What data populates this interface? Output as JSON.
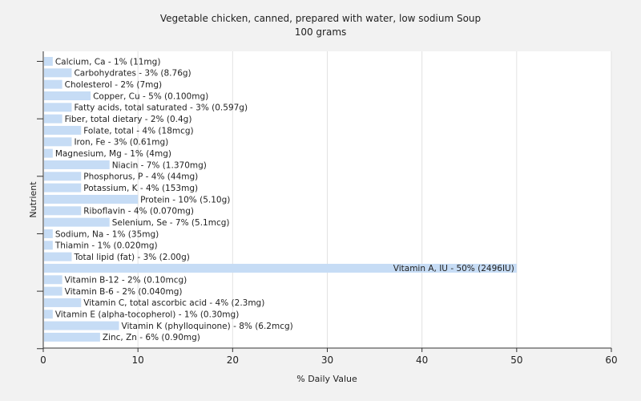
{
  "chart_data": {
    "type": "bar",
    "orientation": "horizontal",
    "title": "Vegetable chicken, canned, prepared with water, low sodium Soup",
    "subtitle": "100 grams",
    "xlabel": "% Daily Value",
    "ylabel": "Nutrient",
    "xlim": [
      0,
      60
    ],
    "xticks": [
      0,
      10,
      20,
      30,
      40,
      50,
      60
    ],
    "grid": true,
    "bar_color": "#c6dcf5",
    "categories": [
      "Calcium, Ca",
      "Carbohydrates",
      "Cholesterol",
      "Copper, Cu",
      "Fatty acids, total saturated",
      "Fiber, total dietary",
      "Folate, total",
      "Iron, Fe",
      "Magnesium, Mg",
      "Niacin",
      "Phosphorus, P",
      "Potassium, K",
      "Protein",
      "Riboflavin",
      "Selenium, Se",
      "Sodium, Na",
      "Thiamin",
      "Total lipid (fat)",
      "Vitamin A, IU",
      "Vitamin B-12",
      "Vitamin B-6",
      "Vitamin C, total ascorbic acid",
      "Vitamin E (alpha-tocopherol)",
      "Vitamin K (phylloquinone)",
      "Zinc, Zn"
    ],
    "values": [
      1,
      3,
      2,
      5,
      3,
      2,
      4,
      3,
      1,
      7,
      4,
      4,
      10,
      4,
      7,
      1,
      1,
      3,
      50,
      2,
      2,
      4,
      1,
      8,
      6
    ],
    "labels": [
      "Calcium, Ca - 1% (11mg)",
      "Carbohydrates - 3% (8.76g)",
      "Cholesterol - 2% (7mg)",
      "Copper, Cu - 5% (0.100mg)",
      "Fatty acids, total saturated - 3% (0.597g)",
      "Fiber, total dietary - 2% (0.4g)",
      "Folate, total - 4% (18mcg)",
      "Iron, Fe - 3% (0.61mg)",
      "Magnesium, Mg - 1% (4mg)",
      "Niacin - 7% (1.370mg)",
      "Phosphorus, P - 4% (44mg)",
      "Potassium, K - 4% (153mg)",
      "Protein - 10% (5.10g)",
      "Riboflavin - 4% (0.070mg)",
      "Selenium, Se - 7% (5.1mcg)",
      "Sodium, Na - 1% (35mg)",
      "Thiamin - 1% (0.020mg)",
      "Total lipid (fat) - 3% (2.00g)",
      "Vitamin A, IU - 50% (2496IU)",
      "Vitamin B-12 - 2% (0.10mcg)",
      "Vitamin B-6 - 2% (0.040mg)",
      "Vitamin C, total ascorbic acid - 4% (2.3mg)",
      "Vitamin E (alpha-tocopherol) - 1% (0.30mg)",
      "Vitamin K (phylloquinone) - 8% (6.2mcg)",
      "Zinc, Zn - 6% (0.90mg)"
    ]
  }
}
